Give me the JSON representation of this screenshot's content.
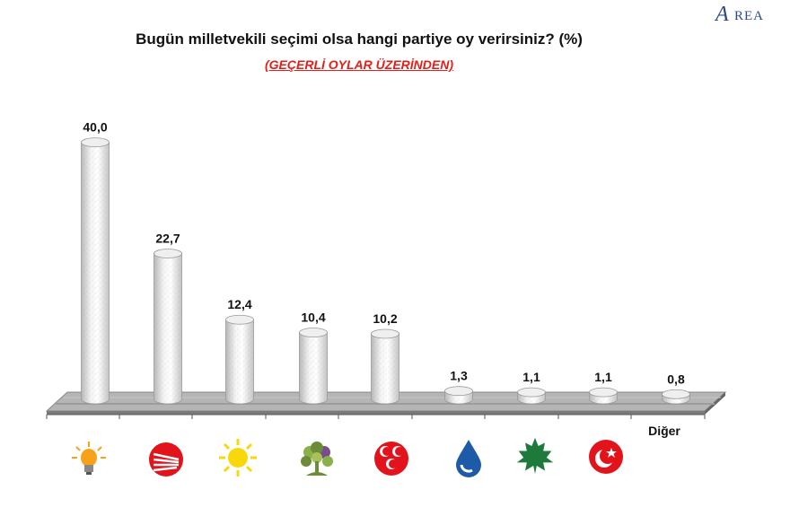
{
  "logo": {
    "text": "AREA"
  },
  "chart_data": {
    "type": "bar",
    "title": "Bugün milletvekili seçimi olsa hangi partiye oy verirsiniz? (%)",
    "subtitle": "(GEÇERLİ OYLAR ÜZERİNDEN)",
    "categories": [
      "AK Parti",
      "CHP",
      "İYİ Parti",
      "HDP",
      "MHP",
      "DEVA",
      "Gelecek",
      "Saadet",
      "Diğer"
    ],
    "values": [
      40.0,
      22.7,
      12.4,
      10.4,
      10.2,
      1.3,
      1.1,
      1.1,
      0.8
    ],
    "value_labels": [
      "40,0",
      "22,7",
      "12,4",
      "10,4",
      "10,2",
      "1,3",
      "1,1",
      "1,1",
      "0,8"
    ],
    "printed_category_label": "Diğer",
    "ylim": [
      0,
      45
    ],
    "grid": false,
    "legend": "none",
    "icons": [
      "lightbulb-icon",
      "chp-arrows-icon",
      "sun-icon",
      "tree-icon",
      "crescents-icon",
      "water-drop-icon",
      "leaf-icon",
      "moon-star-icon"
    ],
    "colors": {
      "bar": "#e4e4e4",
      "bar_edge": "#9a9a9a",
      "floor": "#b5b5b5",
      "subtitle": "#e0211b",
      "ak": "#f7a21b",
      "chp": "#e3131b",
      "iyi": "#f8d80a",
      "hdp": "#6c8c3a",
      "mhp": "#e3131b",
      "deva": "#1d5aa8",
      "gelecek": "#1e7a3a",
      "saadet": "#e3131b"
    }
  }
}
